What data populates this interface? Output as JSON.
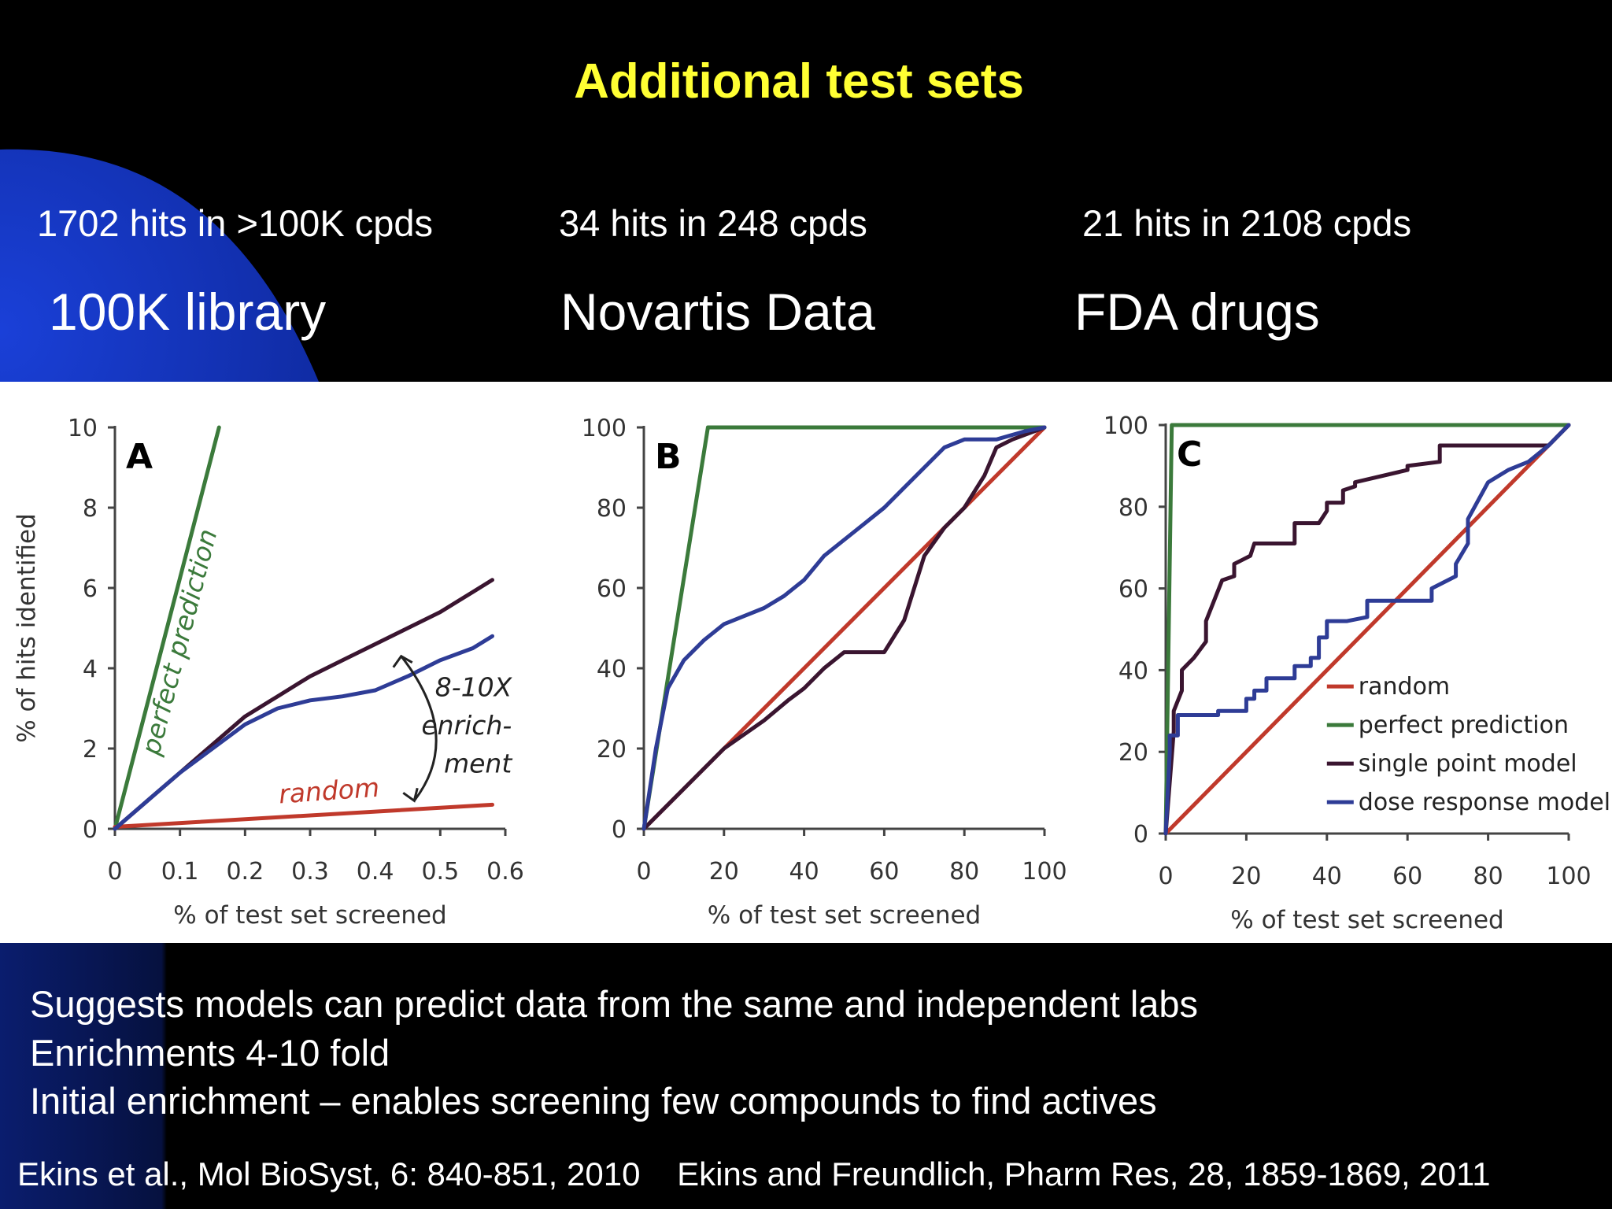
{
  "slide": {
    "title": "Additional test sets",
    "sets": [
      {
        "hits": "1702 hits in >100K cpds",
        "name": "100K library"
      },
      {
        "hits": "34 hits in 248 cpds",
        "name": "Novartis Data"
      },
      {
        "hits": "21 hits in 2108 cpds",
        "name": "FDA drugs"
      }
    ],
    "bullets": [
      "Suggests models can predict data from the same and independent labs",
      "Enrichments 4-10 fold",
      "Initial enrichment – enables screening few compounds to find actives"
    ],
    "references": "Ekins et al., Mol BioSyst, 6: 840-851, 2010    Ekins and Freundlich, Pharm Res, 28, 1859-1869, 2011"
  },
  "colors": {
    "title": "#ffff33",
    "background": "#000000",
    "decor_blue": "#1536b8",
    "random": "#c0392b",
    "perfect_prediction": "#3b7a3b",
    "single_point_model": "#3a1530",
    "dose_response_model": "#2e3c96"
  },
  "chart_data": [
    {
      "type": "line",
      "panel_label": "A",
      "xlabel": "% of test set screened",
      "ylabel": "% of hits identified",
      "xlim": [
        0,
        0.6
      ],
      "ylim": [
        0,
        10
      ],
      "xticks": [
        0,
        0.1,
        0.2,
        0.3,
        0.4,
        0.5,
        0.6
      ],
      "yticks": [
        0,
        2,
        4,
        6,
        8,
        10
      ],
      "grid": false,
      "series": [
        {
          "name": "perfect prediction",
          "key": "perfect",
          "x": [
            0,
            0.16
          ],
          "y": [
            0,
            10
          ]
        },
        {
          "name": "random",
          "key": "random",
          "x": [
            0,
            0.58
          ],
          "y": [
            0.05,
            0.6
          ]
        },
        {
          "key": "single",
          "x": [
            0,
            0.05,
            0.1,
            0.15,
            0.2,
            0.25,
            0.3,
            0.35,
            0.4,
            0.45,
            0.5,
            0.55,
            0.58
          ],
          "y": [
            0,
            0.7,
            1.4,
            2.1,
            2.8,
            3.3,
            3.8,
            4.2,
            4.6,
            5.0,
            5.4,
            5.9,
            6.2
          ]
        },
        {
          "key": "dose",
          "x": [
            0,
            0.05,
            0.1,
            0.15,
            0.2,
            0.25,
            0.3,
            0.35,
            0.4,
            0.45,
            0.5,
            0.55,
            0.58
          ],
          "y": [
            0,
            0.7,
            1.4,
            2.0,
            2.6,
            3.0,
            3.2,
            3.3,
            3.45,
            3.8,
            4.2,
            4.5,
            4.8
          ]
        }
      ],
      "annotations": [
        "8-10X",
        "enrich-",
        "ment"
      ]
    },
    {
      "type": "line",
      "panel_label": "B",
      "xlabel": "% of test set screened",
      "ylabel": "",
      "xlim": [
        0,
        100
      ],
      "ylim": [
        0,
        100
      ],
      "xticks": [
        0,
        20,
        40,
        60,
        80,
        100
      ],
      "yticks": [
        0,
        20,
        40,
        60,
        80,
        100
      ],
      "grid": false,
      "series": [
        {
          "key": "perfect",
          "x": [
            0,
            16,
            100
          ],
          "y": [
            0,
            100,
            100
          ]
        },
        {
          "key": "random",
          "x": [
            0,
            100
          ],
          "y": [
            0,
            100
          ]
        },
        {
          "key": "single",
          "x": [
            0,
            10,
            20,
            30,
            36,
            40,
            45,
            50,
            55,
            60,
            65,
            70,
            75,
            80,
            85,
            88,
            92,
            100
          ],
          "y": [
            0,
            10,
            20,
            27,
            32,
            35,
            40,
            44,
            44,
            44,
            52,
            68,
            75,
            80,
            88,
            95,
            97,
            100
          ]
        },
        {
          "key": "dose",
          "x": [
            0,
            3,
            6,
            10,
            15,
            20,
            25,
            30,
            35,
            40,
            45,
            50,
            55,
            60,
            65,
            70,
            75,
            80,
            88,
            95,
            100
          ],
          "y": [
            0,
            20,
            35,
            42,
            47,
            51,
            53,
            55,
            58,
            62,
            68,
            72,
            76,
            80,
            85,
            90,
            95,
            97,
            97,
            99,
            100
          ]
        }
      ]
    },
    {
      "type": "line",
      "panel_label": "C",
      "xlabel": "% of test set screened",
      "ylabel": "",
      "xlim": [
        0,
        100
      ],
      "ylim": [
        0,
        100
      ],
      "xticks": [
        0,
        20,
        40,
        60,
        80,
        100
      ],
      "yticks": [
        0,
        20,
        40,
        60,
        80,
        100
      ],
      "grid": false,
      "legend": "bottom-right",
      "series": [
        {
          "name": "random",
          "key": "random",
          "x": [
            0,
            100
          ],
          "y": [
            0,
            100
          ]
        },
        {
          "name": "perfect prediction",
          "key": "perfect",
          "x": [
            0,
            1.5,
            100
          ],
          "y": [
            0,
            100,
            100
          ]
        },
        {
          "name": "single point model",
          "key": "single",
          "x": [
            0,
            2,
            2,
            4,
            4,
            7,
            7,
            10,
            10,
            14,
            14,
            17,
            17,
            19,
            19,
            21,
            21,
            22,
            22,
            32,
            32,
            38,
            38,
            40,
            40,
            44,
            44,
            47,
            47,
            60,
            60,
            68,
            68,
            95,
            100
          ],
          "y": [
            0,
            25,
            30,
            35,
            40,
            43,
            43,
            47,
            52,
            62,
            62,
            63,
            66,
            67,
            67,
            68,
            68,
            71,
            71,
            71,
            76,
            76,
            76,
            79,
            81,
            81,
            84,
            85,
            86,
            89,
            90,
            91,
            95,
            95,
            100
          ]
        },
        {
          "name": "dose response model",
          "key": "dose",
          "x": [
            0,
            1,
            1,
            3,
            3,
            13,
            13,
            20,
            20,
            22,
            22,
            25,
            25,
            32,
            32,
            36,
            36,
            38,
            38,
            40,
            40,
            45,
            45,
            50,
            50,
            56,
            56,
            66,
            66,
            72,
            72,
            75,
            75,
            80,
            85,
            90,
            95,
            100
          ],
          "y": [
            0,
            20,
            24,
            24,
            29,
            29,
            30,
            30,
            33,
            33,
            35,
            35,
            38,
            38,
            41,
            41,
            43,
            43,
            48,
            48,
            52,
            52,
            52,
            53,
            57,
            57,
            57,
            57,
            60,
            63,
            66,
            71,
            77,
            86,
            89,
            91,
            95,
            100
          ]
        }
      ]
    }
  ]
}
